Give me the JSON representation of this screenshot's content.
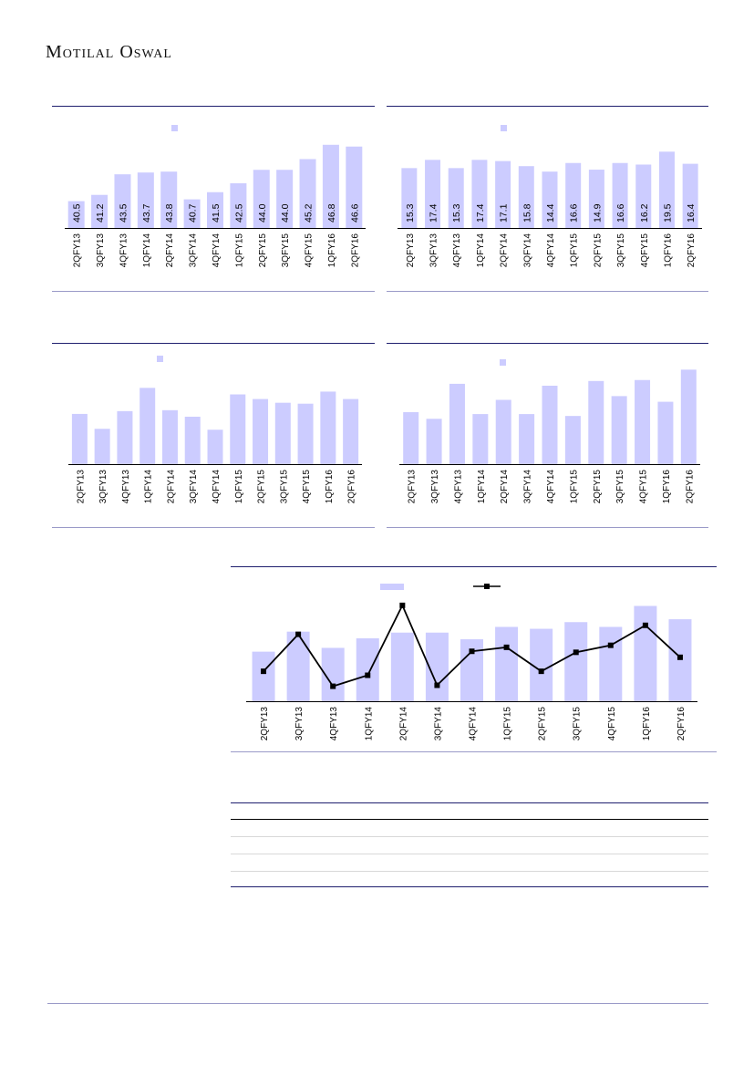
{
  "header": {
    "brand": "Motilal Oswal"
  },
  "colors": {
    "bar": "#ccccff",
    "axis": "#000000",
    "line": "#000000",
    "rule": "#1f1f6e"
  },
  "chart_data": [
    {
      "type": "bar",
      "categories": [
        "2QFY13",
        "3QFY13",
        "4QFY13",
        "1QFY14",
        "2QFY14",
        "3QFY14",
        "4QFY14",
        "1QFY15",
        "2QFY15",
        "3QFY15",
        "4QFY15",
        "1QFY16",
        "2QFY16"
      ],
      "values": [
        40.5,
        41.2,
        43.5,
        43.7,
        43.8,
        40.7,
        41.5,
        42.5,
        44.0,
        44.0,
        45.2,
        46.8,
        46.6
      ],
      "ylim": [
        37.5,
        48.0
      ],
      "show_labels": true,
      "legend": "top"
    },
    {
      "type": "bar",
      "categories": [
        "2QFY13",
        "3QFY13",
        "4QFY13",
        "1QFY14",
        "2QFY14",
        "3QFY14",
        "4QFY14",
        "1QFY15",
        "2QFY15",
        "3QFY15",
        "4QFY15",
        "1QFY16",
        "2QFY16"
      ],
      "values": [
        15.3,
        17.4,
        15.3,
        17.4,
        17.1,
        15.8,
        14.4,
        16.6,
        14.9,
        16.6,
        16.2,
        19.5,
        16.4
      ],
      "ylim": [
        0,
        24
      ],
      "show_labels": true,
      "legend": "top"
    },
    {
      "type": "bar",
      "categories": [
        "2QFY13",
        "3QFY13",
        "4QFY13",
        "1QFY14",
        "2QFY14",
        "3QFY14",
        "4QFY14",
        "1QFY15",
        "2QFY15",
        "3QFY15",
        "4QFY15",
        "1QFY16",
        "2QFY16"
      ],
      "values": [
        54,
        38,
        57,
        82,
        58,
        51,
        37,
        75,
        70,
        66,
        65,
        78,
        70
      ],
      "ylim": [
        0,
        100
      ],
      "show_labels": false,
      "legend": "top"
    },
    {
      "type": "bar",
      "categories": [
        "2QFY13",
        "3QFY13",
        "4QFY13",
        "1QFY14",
        "2QFY14",
        "3QFY14",
        "4QFY14",
        "1QFY15",
        "2QFY15",
        "3QFY15",
        "4QFY15",
        "1QFY16",
        "2QFY16"
      ],
      "values": [
        55,
        48,
        85,
        53,
        68,
        53,
        83,
        51,
        88,
        72,
        89,
        66,
        100
      ],
      "ylim": [
        0,
        110
      ],
      "show_labels": false,
      "legend": "top"
    },
    {
      "type": "bar+line",
      "categories": [
        "2QFY13",
        "3QFY13",
        "4QFY13",
        "1QFY14",
        "2QFY14",
        "3QFY14",
        "4QFY14",
        "1QFY15",
        "2QFY15",
        "3QFY15",
        "4QFY15",
        "1QFY16",
        "2QFY16"
      ],
      "bar_values": [
        52,
        73,
        56,
        66,
        72,
        72,
        65,
        78,
        76,
        83,
        78,
        100,
        86
      ],
      "line_values": [
        30,
        67,
        15,
        26,
        96,
        16,
        50,
        54,
        30,
        49,
        56,
        76,
        44
      ],
      "bar_ylim": [
        0,
        110
      ],
      "line_ylim": [
        0,
        105
      ],
      "legend": "top"
    }
  ]
}
